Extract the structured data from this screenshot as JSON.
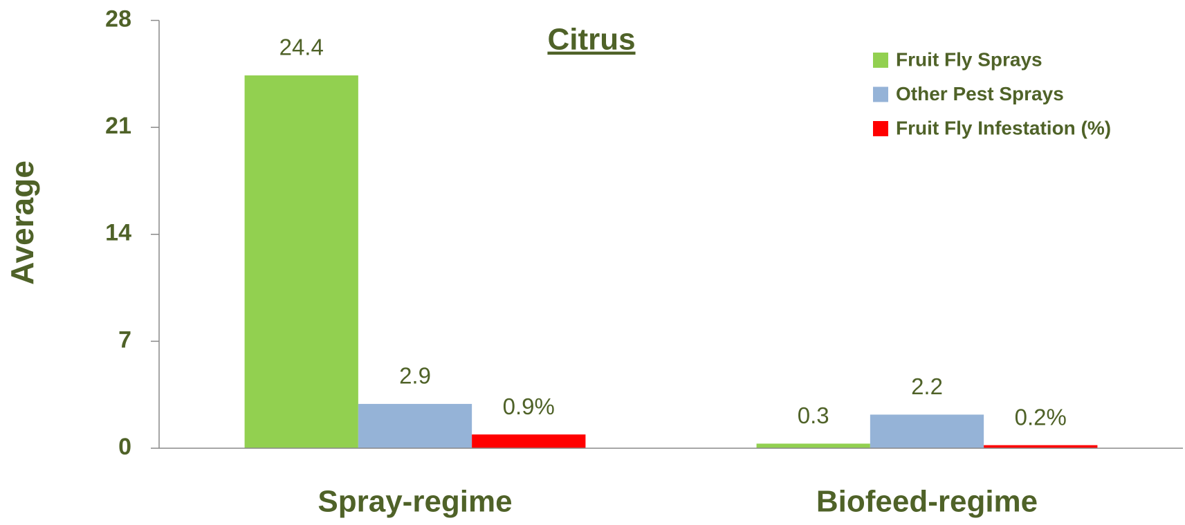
{
  "chart_data": {
    "type": "bar",
    "title": "Citrus",
    "ylabel": "Average",
    "categories": [
      "Spray-regime",
      "Biofeed-regime"
    ],
    "series": [
      {
        "name": "Fruit Fly Sprays",
        "color": "#92d050",
        "values": [
          24.4,
          0.3
        ]
      },
      {
        "name": "Other Pest Sprays",
        "color": "#95b3d7",
        "values": [
          2.9,
          2.2
        ]
      },
      {
        "name": "Fruit Fly Infestation (%)",
        "color": "#ff0000",
        "values": [
          0.9,
          0.2
        ],
        "value_labels": [
          "0.9%",
          "0.2%"
        ]
      }
    ],
    "ylim": [
      0,
      28
    ],
    "yticks": [
      0,
      7,
      14,
      21,
      28
    ],
    "grid": false,
    "legend": "top right"
  }
}
